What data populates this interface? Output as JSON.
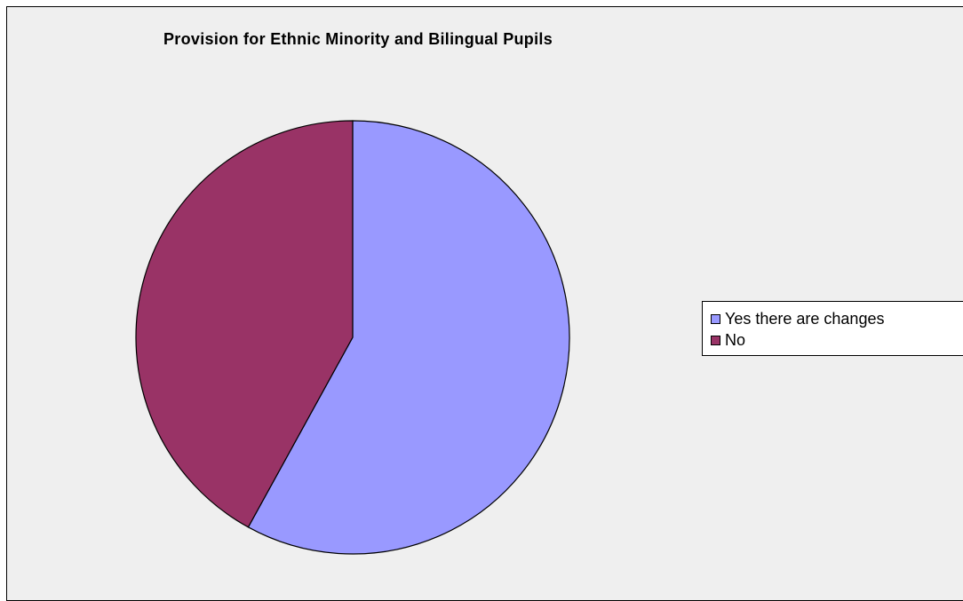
{
  "chart_data": {
    "type": "pie",
    "title": "Provision for Ethnic Minority and Bilingual Pupils",
    "categories": [
      "Yes there are changes",
      "No"
    ],
    "values": [
      58,
      42
    ],
    "colors": [
      "#9999ff",
      "#993366"
    ],
    "start_angle_deg": 0,
    "direction": "clockwise",
    "legend": {
      "placement": "right",
      "entries": [
        "Yes there are changes",
        "No"
      ]
    }
  }
}
